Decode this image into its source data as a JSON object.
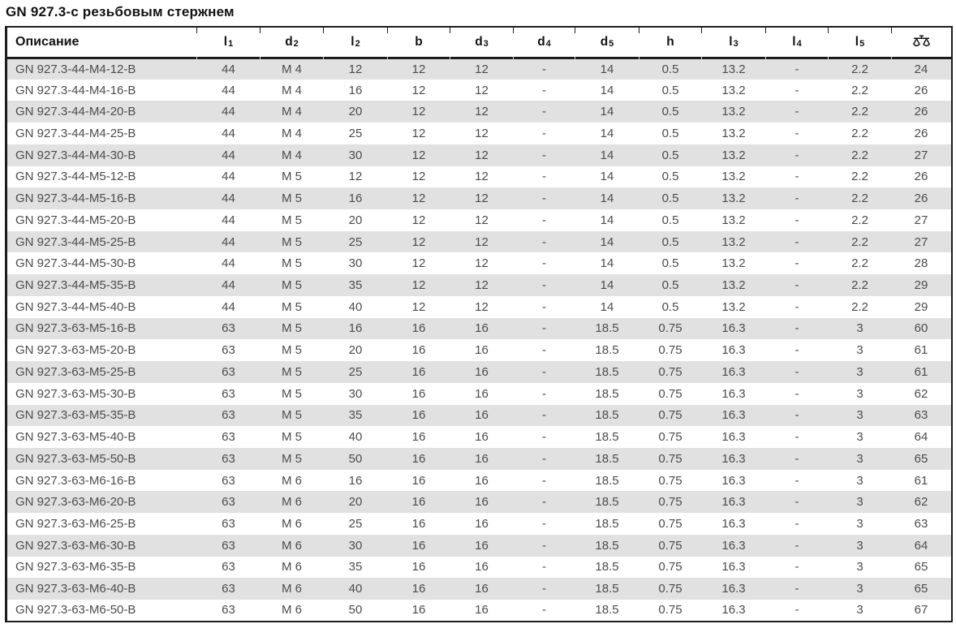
{
  "page_title": "GN 927.3-с резьбовым стержнем",
  "theme": {
    "row_alt_bg": "#e1e1e1",
    "border_color": "#1c1c1c",
    "data_text_color": "#4c4c4c",
    "heading_text_color": "#121212"
  },
  "table": {
    "columns": [
      {
        "label": "Описание"
      },
      {
        "base": "l",
        "sub": "1"
      },
      {
        "base": "d",
        "sub": "2"
      },
      {
        "base": "l",
        "sub": "2"
      },
      {
        "base": "b",
        "sub": ""
      },
      {
        "base": "d",
        "sub": "3"
      },
      {
        "base": "d",
        "sub": "4"
      },
      {
        "base": "d",
        "sub": "5"
      },
      {
        "base": "h",
        "sub": ""
      },
      {
        "base": "l",
        "sub": "3"
      },
      {
        "base": "l",
        "sub": "4"
      },
      {
        "base": "l",
        "sub": "5"
      },
      {
        "icon": "weight-scale-icon"
      }
    ],
    "rows": [
      [
        "GN 927.3-44-M4-12-B",
        "44",
        "M 4",
        "12",
        "12",
        "12",
        "-",
        "14",
        "0.5",
        "13.2",
        "-",
        "2.2",
        "24"
      ],
      [
        "GN 927.3-44-M4-16-B",
        "44",
        "M 4",
        "16",
        "12",
        "12",
        "-",
        "14",
        "0.5",
        "13.2",
        "-",
        "2.2",
        "26"
      ],
      [
        "GN 927.3-44-M4-20-B",
        "44",
        "M 4",
        "20",
        "12",
        "12",
        "-",
        "14",
        "0.5",
        "13.2",
        "-",
        "2.2",
        "26"
      ],
      [
        "GN 927.3-44-M4-25-B",
        "44",
        "M 4",
        "25",
        "12",
        "12",
        "-",
        "14",
        "0.5",
        "13.2",
        "-",
        "2.2",
        "26"
      ],
      [
        "GN 927.3-44-M4-30-B",
        "44",
        "M 4",
        "30",
        "12",
        "12",
        "-",
        "14",
        "0.5",
        "13.2",
        "-",
        "2.2",
        "27"
      ],
      [
        "GN 927.3-44-M5-12-B",
        "44",
        "M 5",
        "12",
        "12",
        "12",
        "-",
        "14",
        "0.5",
        "13.2",
        "-",
        "2.2",
        "26"
      ],
      [
        "GN 927.3-44-M5-16-B",
        "44",
        "M 5",
        "16",
        "12",
        "12",
        "-",
        "14",
        "0.5",
        "13.2",
        "-",
        "2.2",
        "26"
      ],
      [
        "GN 927.3-44-M5-20-B",
        "44",
        "M 5",
        "20",
        "12",
        "12",
        "-",
        "14",
        "0.5",
        "13.2",
        "-",
        "2.2",
        "27"
      ],
      [
        "GN 927.3-44-M5-25-B",
        "44",
        "M 5",
        "25",
        "12",
        "12",
        "-",
        "14",
        "0.5",
        "13.2",
        "-",
        "2.2",
        "27"
      ],
      [
        "GN 927.3-44-M5-30-B",
        "44",
        "M 5",
        "30",
        "12",
        "12",
        "-",
        "14",
        "0.5",
        "13.2",
        "-",
        "2.2",
        "28"
      ],
      [
        "GN 927.3-44-M5-35-B",
        "44",
        "M 5",
        "35",
        "12",
        "12",
        "-",
        "14",
        "0.5",
        "13.2",
        "-",
        "2.2",
        "29"
      ],
      [
        "GN 927.3-44-M5-40-B",
        "44",
        "M 5",
        "40",
        "12",
        "12",
        "-",
        "14",
        "0.5",
        "13.2",
        "-",
        "2.2",
        "29"
      ],
      [
        "GN 927.3-63-M5-16-B",
        "63",
        "M 5",
        "16",
        "16",
        "16",
        "-",
        "18.5",
        "0.75",
        "16.3",
        "-",
        "3",
        "60"
      ],
      [
        "GN 927.3-63-M5-20-B",
        "63",
        "M 5",
        "20",
        "16",
        "16",
        "-",
        "18.5",
        "0.75",
        "16.3",
        "-",
        "3",
        "61"
      ],
      [
        "GN 927.3-63-M5-25-B",
        "63",
        "M 5",
        "25",
        "16",
        "16",
        "-",
        "18.5",
        "0.75",
        "16.3",
        "-",
        "3",
        "61"
      ],
      [
        "GN 927.3-63-M5-30-B",
        "63",
        "M 5",
        "30",
        "16",
        "16",
        "-",
        "18.5",
        "0.75",
        "16.3",
        "-",
        "3",
        "62"
      ],
      [
        "GN 927.3-63-M5-35-B",
        "63",
        "M 5",
        "35",
        "16",
        "16",
        "-",
        "18.5",
        "0.75",
        "16.3",
        "-",
        "3",
        "63"
      ],
      [
        "GN 927.3-63-M5-40-B",
        "63",
        "M 5",
        "40",
        "16",
        "16",
        "-",
        "18.5",
        "0.75",
        "16.3",
        "-",
        "3",
        "64"
      ],
      [
        "GN 927.3-63-M5-50-B",
        "63",
        "M 5",
        "50",
        "16",
        "16",
        "-",
        "18.5",
        "0.75",
        "16.3",
        "-",
        "3",
        "65"
      ],
      [
        "GN 927.3-63-M6-16-B",
        "63",
        "M 6",
        "16",
        "16",
        "16",
        "-",
        "18.5",
        "0.75",
        "16.3",
        "-",
        "3",
        "61"
      ],
      [
        "GN 927.3-63-M6-20-B",
        "63",
        "M 6",
        "20",
        "16",
        "16",
        "-",
        "18.5",
        "0.75",
        "16.3",
        "-",
        "3",
        "62"
      ],
      [
        "GN 927.3-63-M6-25-B",
        "63",
        "M 6",
        "25",
        "16",
        "16",
        "-",
        "18.5",
        "0.75",
        "16.3",
        "-",
        "3",
        "63"
      ],
      [
        "GN 927.3-63-M6-30-B",
        "63",
        "M 6",
        "30",
        "16",
        "16",
        "-",
        "18.5",
        "0.75",
        "16.3",
        "-",
        "3",
        "64"
      ],
      [
        "GN 927.3-63-M6-35-B",
        "63",
        "M 6",
        "35",
        "16",
        "16",
        "-",
        "18.5",
        "0.75",
        "16.3",
        "-",
        "3",
        "65"
      ],
      [
        "GN 927.3-63-M6-40-B",
        "63",
        "M 6",
        "40",
        "16",
        "16",
        "-",
        "18.5",
        "0.75",
        "16.3",
        "-",
        "3",
        "65"
      ],
      [
        "GN 927.3-63-M6-50-B",
        "63",
        "M 6",
        "50",
        "16",
        "16",
        "-",
        "18.5",
        "0.75",
        "16.3",
        "-",
        "3",
        "67"
      ]
    ]
  }
}
